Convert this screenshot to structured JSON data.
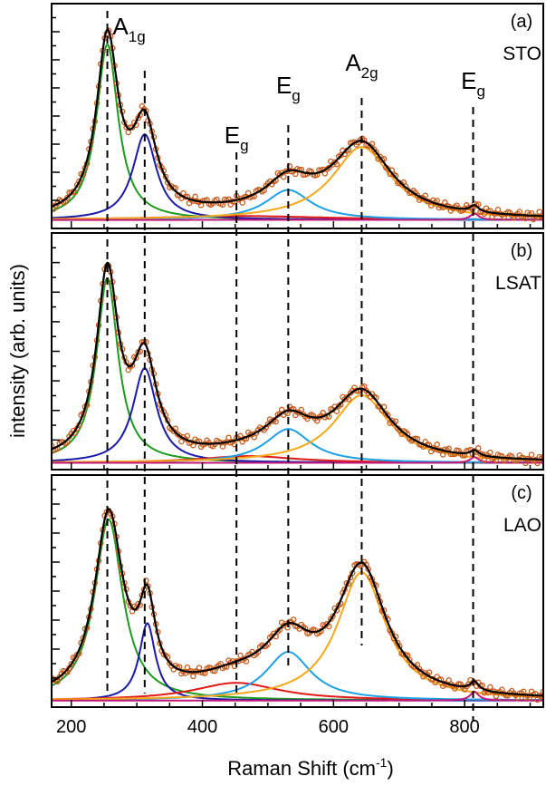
{
  "chart_data": {
    "type": "line",
    "xlabel": "Raman Shift (cm",
    "xlabel_sup": "-1",
    "xlabel_close": ")",
    "ylabel": "intensity (arb. units)",
    "xlim": [
      170,
      920
    ],
    "xticks": [
      200,
      400,
      600,
      800
    ],
    "colors": {
      "data": "#c85a1a",
      "fit": "#000000",
      "A1g": "#1e9a1e",
      "A1g_2": "#1a1aa8",
      "Eg_450": "#e01818",
      "Eg_530": "#1ea0e6",
      "A2g": "#f5a818",
      "Eg_815": "#c0187a"
    },
    "mode_lines": [
      255,
      312,
      452,
      531,
      643,
      813
    ],
    "mode_labels": [
      {
        "main": "A",
        "sub": "1g",
        "x": 255,
        "panel": 0
      },
      {
        "main": "E",
        "sub": "g",
        "x": 452,
        "panel": 0
      },
      {
        "main": "E",
        "sub": "g",
        "x": 531,
        "panel": 0
      },
      {
        "main": "A",
        "sub": "2g",
        "x": 643,
        "panel": 0
      },
      {
        "main": "E",
        "sub": "g",
        "x": 813,
        "panel": 0
      }
    ],
    "panels": [
      {
        "label": "(a)",
        "name": "STO",
        "ylim": [
          0,
          1.05
        ],
        "baseline": 0.04,
        "components": [
          {
            "mode": "A1g",
            "center": 255,
            "amp": 0.82,
            "hwhm": 20
          },
          {
            "mode": "A1g_2",
            "center": 312,
            "amp": 0.4,
            "hwhm": 22
          },
          {
            "mode": "Eg_450",
            "center": 460,
            "amp": 0.018,
            "hwhm": 160
          },
          {
            "mode": "Eg_530",
            "center": 531,
            "amp": 0.14,
            "hwhm": 42
          },
          {
            "mode": "A2g",
            "center": 643,
            "amp": 0.34,
            "hwhm": 55
          },
          {
            "mode": "Eg_815",
            "center": 815,
            "amp": 0.03,
            "hwhm": 8
          }
        ]
      },
      {
        "label": "(b)",
        "name": "LSAT",
        "ylim": [
          0,
          1.05
        ],
        "baseline": 0.03,
        "components": [
          {
            "mode": "A1g",
            "center": 255,
            "amp": 0.82,
            "hwhm": 20
          },
          {
            "mode": "A1g_2",
            "center": 312,
            "amp": 0.42,
            "hwhm": 22
          },
          {
            "mode": "Eg_450",
            "center": 470,
            "amp": 0.03,
            "hwhm": 90
          },
          {
            "mode": "Eg_530",
            "center": 531,
            "amp": 0.15,
            "hwhm": 42
          },
          {
            "mode": "A2g",
            "center": 643,
            "amp": 0.3,
            "hwhm": 52
          },
          {
            "mode": "Eg_815",
            "center": 815,
            "amp": 0.025,
            "hwhm": 8
          }
        ]
      },
      {
        "label": "(c)",
        "name": "LAO",
        "ylim": [
          0,
          1.05
        ],
        "baseline": 0.03,
        "components": [
          {
            "mode": "A1g",
            "center": 257,
            "amp": 0.82,
            "hwhm": 26
          },
          {
            "mode": "A1g_2",
            "center": 316,
            "amp": 0.35,
            "hwhm": 15
          },
          {
            "mode": "Eg_450",
            "center": 452,
            "amp": 0.08,
            "hwhm": 80
          },
          {
            "mode": "Eg_530",
            "center": 531,
            "amp": 0.22,
            "hwhm": 42
          },
          {
            "mode": "A2g",
            "center": 643,
            "amp": 0.58,
            "hwhm": 45
          },
          {
            "mode": "Eg_815",
            "center": 815,
            "amp": 0.04,
            "hwhm": 8
          }
        ]
      }
    ]
  }
}
